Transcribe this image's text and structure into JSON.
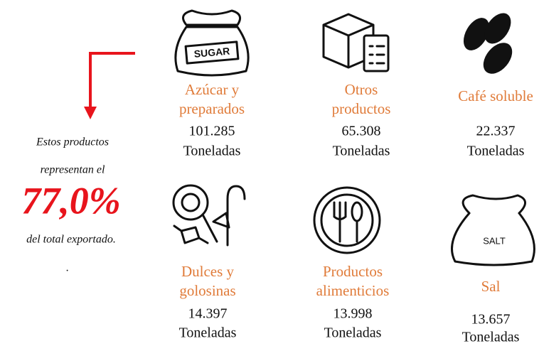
{
  "summary": {
    "lines": [
      "Estos productos",
      "representan el"
    ],
    "share": "77,0%",
    "tail": "del total exportado.",
    "dot": "."
  },
  "products": [
    {
      "name": [
        "Azúcar  y",
        "preparados"
      ],
      "value": "101.285",
      "unit": "Toneladas"
    },
    {
      "name": [
        "Otros",
        "productos"
      ],
      "value": "65.308",
      "unit": "Toneladas"
    },
    {
      "name": [
        "Café soluble"
      ],
      "value": "22.337",
      "unit": "Toneladas"
    },
    {
      "name": [
        "Dulces y",
        "golosinas"
      ],
      "value": "14.397",
      "unit": "Toneladas"
    },
    {
      "name": [
        "Productos",
        "alimenticios"
      ],
      "value": "13.998",
      "unit": "Toneladas"
    },
    {
      "name": [
        "Sal"
      ],
      "value": "13.657",
      "unit": "Toneladas"
    }
  ]
}
